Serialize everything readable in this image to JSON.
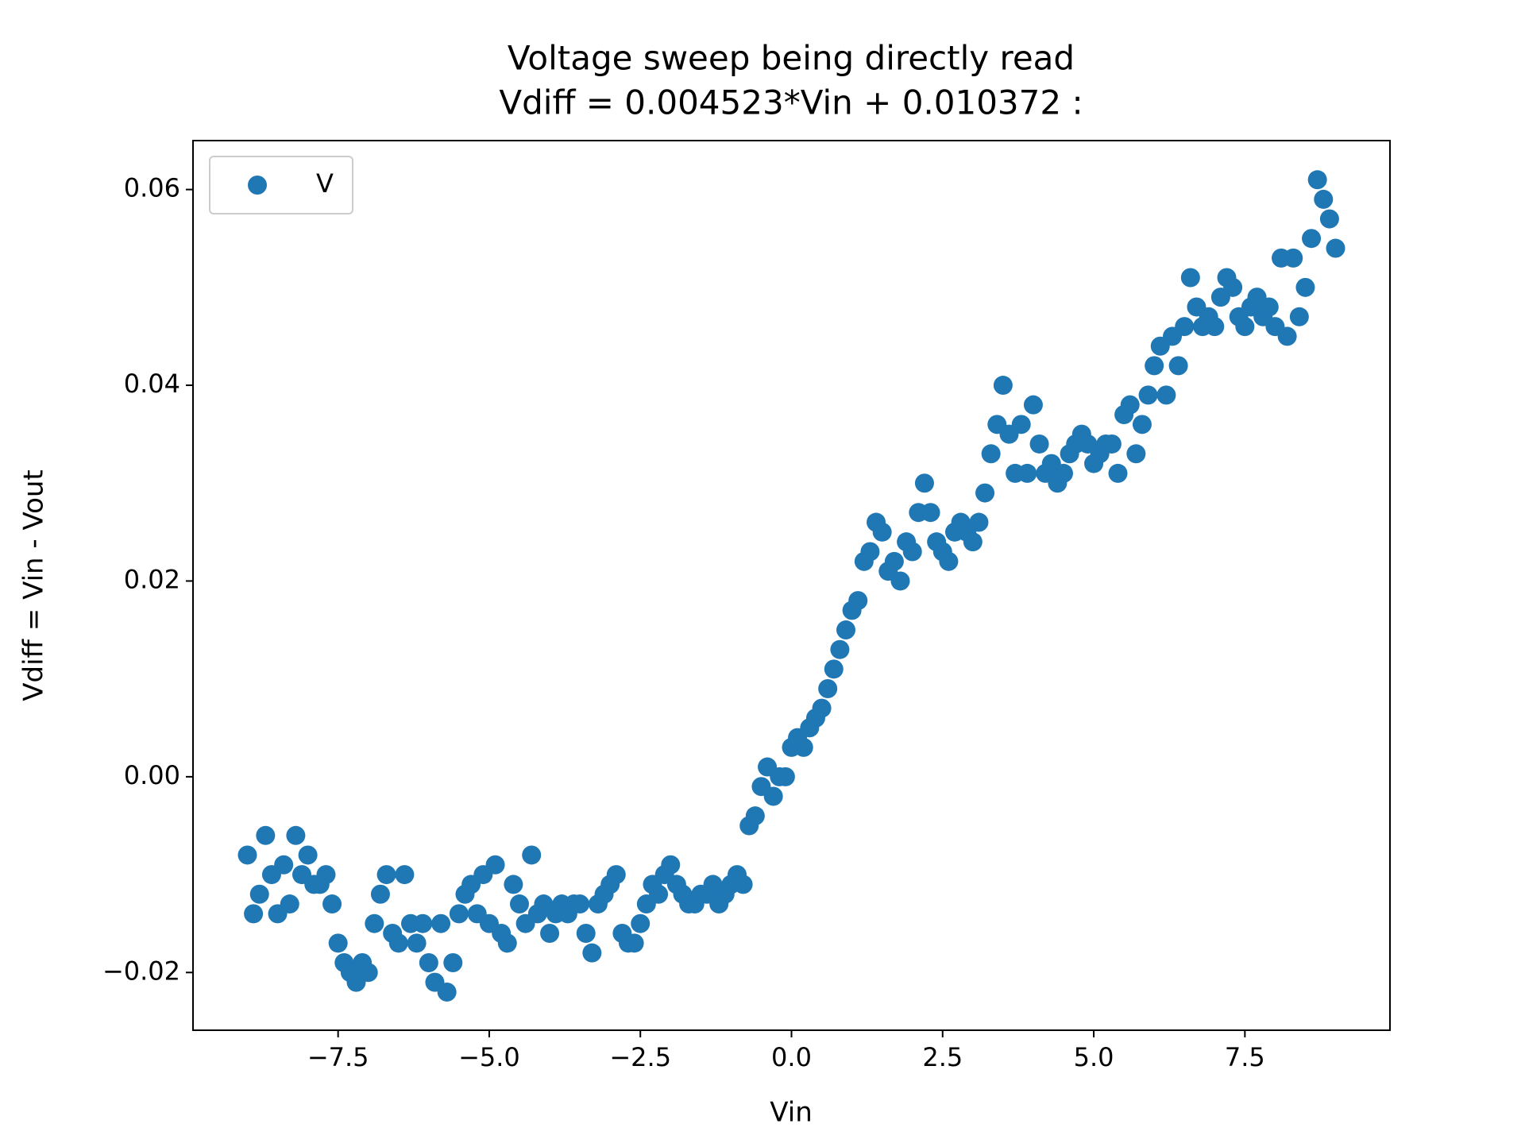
{
  "chart_data": {
    "type": "scatter",
    "title": "Voltage sweep being directly read",
    "subtitle": "Vdiff = 0.004523*Vin + 0.010372 :",
    "xlabel": "Vin",
    "ylabel": "Vdiff = Vin - Vout",
    "legend": "upper left",
    "xlim": [
      -9.9,
      9.9
    ],
    "ylim": [
      -0.0259,
      0.065
    ],
    "xticks": [
      {
        "value": -7.5,
        "label": "−7.5"
      },
      {
        "value": -5.0,
        "label": "−5.0"
      },
      {
        "value": -2.5,
        "label": "−2.5"
      },
      {
        "value": 0,
        "label": "0.0"
      },
      2.5,
      {
        "value": 5,
        "label": "5.0"
      },
      7.5
    ],
    "yticks": [
      {
        "value": -0.02,
        "label": "−0.02"
      },
      {
        "value": 0,
        "label": "0.00"
      },
      0.02,
      0.04,
      0.06
    ],
    "series": [
      {
        "name": "V",
        "color": "#1f77b4",
        "x": [
          -9.0,
          -8.9,
          -8.8,
          -8.7,
          -8.6,
          -8.5,
          -8.4,
          -8.3,
          -8.2,
          -8.1,
          -8.0,
          -7.9,
          -7.8,
          -7.7,
          -7.6,
          -7.5,
          -7.4,
          -7.3,
          -7.2,
          -7.1,
          -7.0,
          -6.9,
          -6.8,
          -6.7,
          -6.6,
          -6.5,
          -6.4,
          -6.3,
          -6.2,
          -6.1,
          -6.0,
          -5.9,
          -5.8,
          -5.7,
          -5.6,
          -5.5,
          -5.4,
          -5.3,
          -5.2,
          -5.1,
          -5.0,
          -4.9,
          -4.8,
          -4.7,
          -4.6,
          -4.5,
          -4.4,
          -4.3,
          -4.2,
          -4.1,
          -4.0,
          -3.9,
          -3.8,
          -3.7,
          -3.6,
          -3.5,
          -3.4,
          -3.3,
          -3.2,
          -3.1,
          -3.0,
          -2.9,
          -2.8,
          -2.7,
          -2.6,
          -2.5,
          -2.4,
          -2.3,
          -2.2,
          -2.1,
          -2.0,
          -1.9,
          -1.8,
          -1.7,
          -1.6,
          -1.5,
          -1.4,
          -1.3,
          -1.2,
          -1.1,
          -1.0,
          -0.9,
          -0.8,
          -0.7,
          -0.6,
          -0.5,
          -0.4,
          -0.3,
          -0.2,
          -0.1,
          0.0,
          0.1,
          0.2,
          0.3,
          0.4,
          0.5,
          0.6,
          0.7,
          0.8,
          0.9,
          1.0,
          1.1,
          1.2,
          1.3,
          1.4,
          1.5,
          1.6,
          1.7,
          1.8,
          1.9,
          2.0,
          2.1,
          2.2,
          2.3,
          2.4,
          2.5,
          2.6,
          2.7,
          2.8,
          2.9,
          3.0,
          3.1,
          3.2,
          3.3,
          3.4,
          3.5,
          3.6,
          3.7,
          3.8,
          3.9,
          4.0,
          4.1,
          4.2,
          4.3,
          4.4,
          4.5,
          4.6,
          4.7,
          4.8,
          4.9,
          5.0,
          5.1,
          5.2,
          5.3,
          5.4,
          5.5,
          5.6,
          5.7,
          5.8,
          5.9,
          6.0,
          6.1,
          6.2,
          6.3,
          6.4,
          6.5,
          6.6,
          6.7,
          6.8,
          6.9,
          7.0,
          7.1,
          7.2,
          7.3,
          7.4,
          7.5,
          7.6,
          7.7,
          7.8,
          7.9,
          8.0,
          8.1,
          8.2,
          8.3,
          8.4,
          8.5,
          8.6,
          8.7,
          8.8,
          8.9,
          9.0
        ],
        "values": [
          -0.008,
          -0.014,
          -0.012,
          -0.006,
          -0.01,
          -0.014,
          -0.009,
          -0.013,
          -0.006,
          -0.01,
          -0.008,
          -0.011,
          -0.011,
          -0.01,
          -0.013,
          -0.017,
          -0.019,
          -0.02,
          -0.021,
          -0.019,
          -0.02,
          -0.015,
          -0.012,
          -0.01,
          -0.016,
          -0.017,
          -0.01,
          -0.015,
          -0.017,
          -0.015,
          -0.019,
          -0.021,
          -0.015,
          -0.022,
          -0.019,
          -0.014,
          -0.012,
          -0.011,
          -0.014,
          -0.01,
          -0.015,
          -0.009,
          -0.016,
          -0.017,
          -0.011,
          -0.013,
          -0.015,
          -0.008,
          -0.014,
          -0.013,
          -0.016,
          -0.014,
          -0.013,
          -0.014,
          -0.013,
          -0.013,
          -0.016,
          -0.018,
          -0.013,
          -0.012,
          -0.011,
          -0.01,
          -0.016,
          -0.017,
          -0.017,
          -0.015,
          -0.013,
          -0.011,
          -0.012,
          -0.01,
          -0.009,
          -0.011,
          -0.012,
          -0.013,
          -0.013,
          -0.012,
          -0.012,
          -0.011,
          -0.013,
          -0.012,
          -0.011,
          -0.01,
          -0.011,
          -0.005,
          -0.004,
          -0.001,
          0.001,
          -0.002,
          0.0,
          0.0,
          0.003,
          0.004,
          0.003,
          0.005,
          0.006,
          0.007,
          0.009,
          0.011,
          0.013,
          0.015,
          0.017,
          0.018,
          0.022,
          0.023,
          0.026,
          0.025,
          0.021,
          0.022,
          0.02,
          0.024,
          0.023,
          0.027,
          0.03,
          0.027,
          0.024,
          0.023,
          0.022,
          0.025,
          0.026,
          0.025,
          0.024,
          0.026,
          0.029,
          0.033,
          0.036,
          0.04,
          0.035,
          0.031,
          0.036,
          0.031,
          0.038,
          0.034,
          0.031,
          0.032,
          0.03,
          0.031,
          0.033,
          0.034,
          0.035,
          0.034,
          0.032,
          0.033,
          0.034,
          0.034,
          0.031,
          0.037,
          0.038,
          0.033,
          0.036,
          0.039,
          0.042,
          0.044,
          0.039,
          0.045,
          0.042,
          0.046,
          0.051,
          0.048,
          0.046,
          0.047,
          0.046,
          0.049,
          0.051,
          0.05,
          0.047,
          0.046,
          0.048,
          0.049,
          0.047,
          0.048,
          0.046,
          0.053,
          0.045,
          0.053,
          0.047,
          0.05,
          0.055,
          0.061,
          0.059,
          0.057,
          0.054
        ]
      }
    ]
  }
}
